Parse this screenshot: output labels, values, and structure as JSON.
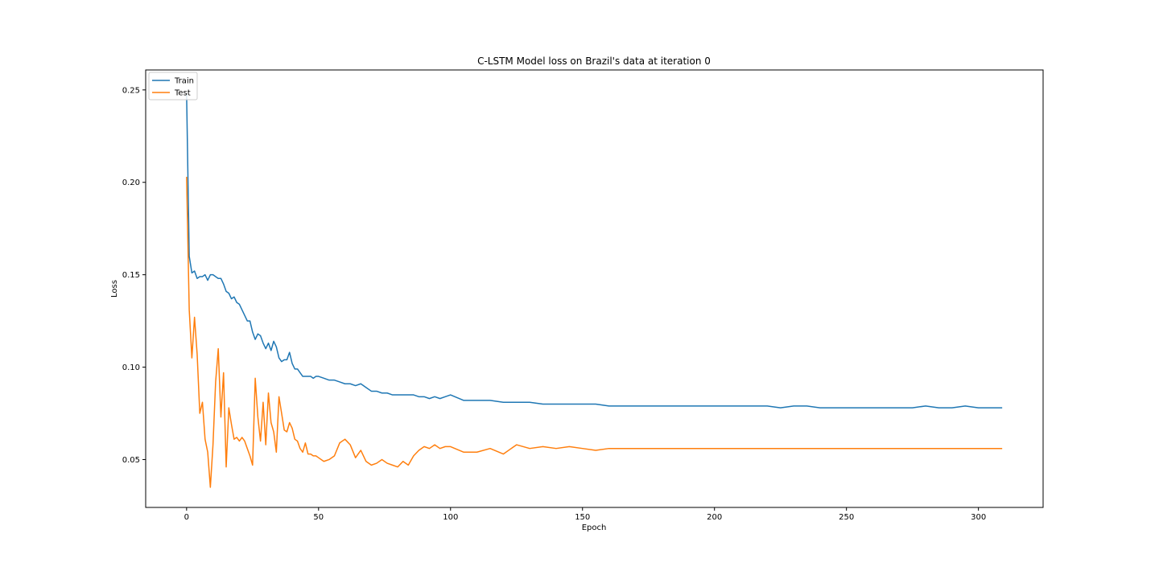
{
  "chart_data": {
    "type": "line",
    "title": "C-LSTM Model loss on Brazil's data at iteration 0",
    "xlabel": "Epoch",
    "ylabel": "Loss",
    "xlim": [
      -15.5,
      324.5
    ],
    "ylim": [
      0.0241,
      0.2608
    ],
    "xticks": [
      0,
      50,
      100,
      150,
      200,
      250,
      300
    ],
    "yticks": [
      0.05,
      0.1,
      0.15,
      0.2,
      0.25
    ],
    "ytick_labels": [
      "0.05",
      "0.10",
      "0.15",
      "0.20",
      "0.25"
    ],
    "legend": {
      "placement": "upper-left"
    },
    "grid": false,
    "colors": {
      "Train": "#1f77b4",
      "Test": "#ff7f0e"
    },
    "series": [
      {
        "name": "Train",
        "x": [
          0,
          1,
          2,
          3,
          4,
          5,
          6,
          7,
          8,
          9,
          10,
          11,
          12,
          13,
          14,
          15,
          16,
          17,
          18,
          19,
          20,
          21,
          22,
          23,
          24,
          25,
          26,
          27,
          28,
          29,
          30,
          31,
          32,
          33,
          34,
          35,
          36,
          37,
          38,
          39,
          40,
          41,
          42,
          43,
          44,
          45,
          46,
          47,
          48,
          49,
          50,
          52,
          54,
          56,
          58,
          60,
          62,
          64,
          66,
          68,
          70,
          72,
          74,
          76,
          78,
          80,
          82,
          84,
          86,
          88,
          90,
          92,
          94,
          96,
          98,
          100,
          105,
          110,
          115,
          120,
          125,
          130,
          135,
          140,
          145,
          150,
          155,
          160,
          165,
          170,
          175,
          180,
          185,
          190,
          195,
          200,
          205,
          210,
          215,
          220,
          225,
          230,
          235,
          240,
          245,
          250,
          255,
          260,
          265,
          270,
          275,
          280,
          285,
          290,
          295,
          300,
          305,
          309
        ],
        "values": [
          0.248,
          0.16,
          0.151,
          0.152,
          0.148,
          0.149,
          0.149,
          0.15,
          0.147,
          0.15,
          0.15,
          0.149,
          0.148,
          0.148,
          0.145,
          0.141,
          0.14,
          0.137,
          0.138,
          0.135,
          0.134,
          0.131,
          0.128,
          0.125,
          0.125,
          0.119,
          0.115,
          0.118,
          0.117,
          0.113,
          0.11,
          0.113,
          0.109,
          0.114,
          0.111,
          0.105,
          0.103,
          0.104,
          0.104,
          0.108,
          0.102,
          0.099,
          0.099,
          0.097,
          0.095,
          0.095,
          0.095,
          0.095,
          0.094,
          0.095,
          0.095,
          0.094,
          0.093,
          0.093,
          0.092,
          0.091,
          0.091,
          0.09,
          0.091,
          0.089,
          0.087,
          0.087,
          0.086,
          0.086,
          0.085,
          0.085,
          0.085,
          0.085,
          0.085,
          0.084,
          0.084,
          0.083,
          0.084,
          0.083,
          0.084,
          0.085,
          0.082,
          0.082,
          0.082,
          0.081,
          0.081,
          0.081,
          0.08,
          0.08,
          0.08,
          0.08,
          0.08,
          0.079,
          0.079,
          0.079,
          0.079,
          0.079,
          0.079,
          0.079,
          0.079,
          0.079,
          0.079,
          0.079,
          0.079,
          0.079,
          0.078,
          0.079,
          0.079,
          0.078,
          0.078,
          0.078,
          0.078,
          0.078,
          0.078,
          0.078,
          0.078,
          0.079,
          0.078,
          0.078,
          0.079,
          0.078,
          0.078,
          0.078
        ]
      },
      {
        "name": "Test",
        "x": [
          0,
          1,
          2,
          3,
          4,
          5,
          6,
          7,
          8,
          9,
          10,
          11,
          12,
          13,
          14,
          15,
          16,
          17,
          18,
          19,
          20,
          21,
          22,
          23,
          24,
          25,
          26,
          27,
          28,
          29,
          30,
          31,
          32,
          33,
          34,
          35,
          36,
          37,
          38,
          39,
          40,
          41,
          42,
          43,
          44,
          45,
          46,
          47,
          48,
          49,
          50,
          52,
          54,
          56,
          58,
          60,
          62,
          64,
          66,
          68,
          70,
          72,
          74,
          76,
          78,
          80,
          82,
          84,
          86,
          88,
          90,
          92,
          94,
          96,
          98,
          100,
          105,
          110,
          115,
          120,
          125,
          130,
          135,
          140,
          145,
          150,
          155,
          160,
          165,
          170,
          175,
          180,
          185,
          190,
          195,
          200,
          205,
          210,
          215,
          220,
          225,
          230,
          235,
          240,
          245,
          250,
          255,
          260,
          265,
          270,
          275,
          280,
          285,
          290,
          295,
          300,
          305,
          309
        ],
        "values": [
          0.203,
          0.131,
          0.105,
          0.127,
          0.107,
          0.075,
          0.081,
          0.061,
          0.054,
          0.035,
          0.058,
          0.092,
          0.11,
          0.073,
          0.097,
          0.046,
          0.078,
          0.069,
          0.061,
          0.062,
          0.06,
          0.062,
          0.06,
          0.056,
          0.052,
          0.047,
          0.094,
          0.073,
          0.06,
          0.081,
          0.058,
          0.086,
          0.07,
          0.065,
          0.054,
          0.084,
          0.075,
          0.066,
          0.065,
          0.07,
          0.067,
          0.061,
          0.06,
          0.056,
          0.054,
          0.059,
          0.053,
          0.053,
          0.052,
          0.052,
          0.051,
          0.049,
          0.05,
          0.052,
          0.059,
          0.061,
          0.058,
          0.051,
          0.055,
          0.049,
          0.047,
          0.048,
          0.05,
          0.048,
          0.047,
          0.046,
          0.049,
          0.047,
          0.052,
          0.055,
          0.057,
          0.056,
          0.058,
          0.056,
          0.057,
          0.057,
          0.054,
          0.054,
          0.056,
          0.053,
          0.058,
          0.056,
          0.057,
          0.056,
          0.057,
          0.056,
          0.055,
          0.056,
          0.056,
          0.056,
          0.056,
          0.056,
          0.056,
          0.056,
          0.056,
          0.056,
          0.056,
          0.056,
          0.056,
          0.056,
          0.056,
          0.056,
          0.056,
          0.056,
          0.056,
          0.056,
          0.056,
          0.056,
          0.056,
          0.056,
          0.056,
          0.056,
          0.056,
          0.056,
          0.056,
          0.056,
          0.056,
          0.056
        ]
      }
    ]
  }
}
